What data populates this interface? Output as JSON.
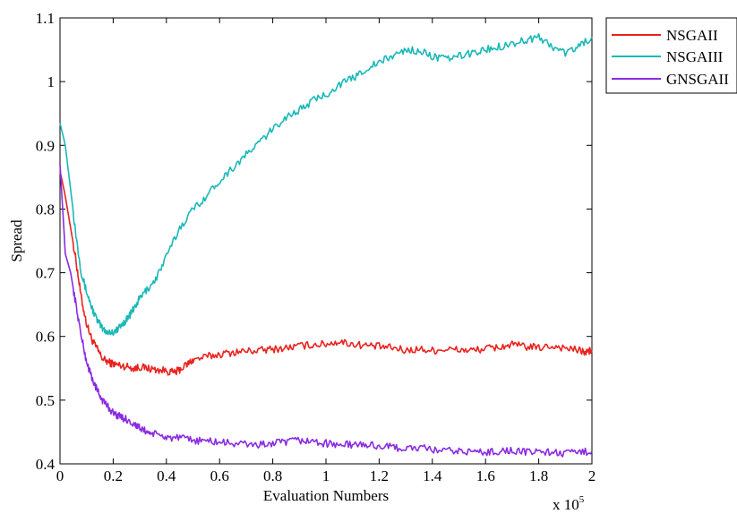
{
  "chart_data": {
    "type": "line",
    "xlabel": "Evaluation Numbers",
    "ylabel": "Spread",
    "x_multiplier_label": {
      "base": "x 10",
      "exponent": "5"
    },
    "xlim": [
      0,
      2
    ],
    "ylim": [
      0.4,
      1.1
    ],
    "x_ticks": [
      0,
      0.2,
      0.4,
      0.6,
      0.8,
      1,
      1.2,
      1.4,
      1.6,
      1.8,
      2
    ],
    "x_tick_labels": [
      "0",
      "0.2",
      "0.4",
      "0.6",
      "0.8",
      "1",
      "1.2",
      "1.4",
      "1.6",
      "1.8",
      "2"
    ],
    "y_ticks": [
      0.4,
      0.5,
      0.6,
      0.7,
      0.8,
      0.9,
      1.0,
      1.1
    ],
    "y_tick_labels": [
      "0.4",
      "0.5",
      "0.6",
      "0.7",
      "0.8",
      "0.9",
      "1",
      "1.1"
    ],
    "grid": false,
    "legend_position": "outside-top-right",
    "series": [
      {
        "name": "NSGAII",
        "color": "#e8231f",
        "x": [
          0,
          0.02,
          0.04,
          0.06,
          0.08,
          0.1,
          0.12,
          0.14,
          0.16,
          0.18,
          0.2,
          0.22,
          0.25,
          0.28,
          0.3,
          0.33,
          0.36,
          0.4,
          0.43,
          0.45,
          0.48,
          0.5,
          0.55,
          0.6,
          0.65,
          0.7,
          0.75,
          0.8,
          0.85,
          0.9,
          0.95,
          1.0,
          1.05,
          1.1,
          1.15,
          1.2,
          1.25,
          1.3,
          1.35,
          1.4,
          1.45,
          1.5,
          1.55,
          1.6,
          1.65,
          1.7,
          1.75,
          1.8,
          1.85,
          1.9,
          1.95,
          1.98,
          2.0
        ],
        "y": [
          0.86,
          0.82,
          0.77,
          0.72,
          0.66,
          0.62,
          0.595,
          0.58,
          0.565,
          0.56,
          0.557,
          0.555,
          0.553,
          0.55,
          0.552,
          0.55,
          0.548,
          0.546,
          0.543,
          0.548,
          0.557,
          0.563,
          0.568,
          0.572,
          0.575,
          0.577,
          0.578,
          0.58,
          0.582,
          0.585,
          0.587,
          0.588,
          0.592,
          0.588,
          0.586,
          0.584,
          0.582,
          0.578,
          0.58,
          0.578,
          0.58,
          0.579,
          0.578,
          0.581,
          0.583,
          0.587,
          0.584,
          0.582,
          0.585,
          0.582,
          0.578,
          0.575,
          0.579
        ]
      },
      {
        "name": "NSGAIII",
        "color": "#1ab8b8",
        "x": [
          0,
          0.02,
          0.04,
          0.06,
          0.08,
          0.1,
          0.12,
          0.14,
          0.16,
          0.18,
          0.2,
          0.22,
          0.24,
          0.26,
          0.28,
          0.3,
          0.33,
          0.36,
          0.4,
          0.45,
          0.5,
          0.55,
          0.6,
          0.65,
          0.7,
          0.75,
          0.8,
          0.85,
          0.9,
          0.95,
          1.0,
          1.05,
          1.1,
          1.15,
          1.2,
          1.25,
          1.3,
          1.35,
          1.4,
          1.45,
          1.5,
          1.55,
          1.6,
          1.65,
          1.7,
          1.75,
          1.8,
          1.85,
          1.9,
          1.95,
          2.0
        ],
        "y": [
          0.935,
          0.9,
          0.83,
          0.76,
          0.7,
          0.67,
          0.645,
          0.625,
          0.612,
          0.607,
          0.607,
          0.612,
          0.622,
          0.632,
          0.645,
          0.66,
          0.675,
          0.69,
          0.725,
          0.77,
          0.8,
          0.82,
          0.845,
          0.865,
          0.885,
          0.905,
          0.925,
          0.945,
          0.955,
          0.97,
          0.98,
          0.995,
          1.005,
          1.02,
          1.03,
          1.04,
          1.05,
          1.048,
          1.04,
          1.035,
          1.04,
          1.045,
          1.05,
          1.055,
          1.06,
          1.065,
          1.07,
          1.055,
          1.045,
          1.055,
          1.07
        ]
      },
      {
        "name": "GNSGAII",
        "color": "#8a2be2",
        "x": [
          0,
          0.02,
          0.04,
          0.06,
          0.08,
          0.1,
          0.12,
          0.14,
          0.16,
          0.18,
          0.2,
          0.22,
          0.25,
          0.28,
          0.3,
          0.33,
          0.36,
          0.4,
          0.45,
          0.5,
          0.55,
          0.6,
          0.65,
          0.7,
          0.75,
          0.8,
          0.85,
          0.9,
          0.95,
          1.0,
          1.05,
          1.1,
          1.15,
          1.2,
          1.25,
          1.3,
          1.35,
          1.4,
          1.45,
          1.5,
          1.55,
          1.6,
          1.65,
          1.7,
          1.75,
          1.8,
          1.85,
          1.9,
          1.95,
          2.0
        ],
        "y": [
          0.87,
          0.73,
          0.7,
          0.65,
          0.6,
          0.56,
          0.535,
          0.515,
          0.5,
          0.49,
          0.48,
          0.475,
          0.47,
          0.462,
          0.456,
          0.45,
          0.446,
          0.442,
          0.44,
          0.437,
          0.436,
          0.434,
          0.432,
          0.431,
          0.43,
          0.432,
          0.434,
          0.437,
          0.435,
          0.432,
          0.43,
          0.43,
          0.43,
          0.428,
          0.426,
          0.424,
          0.425,
          0.422,
          0.42,
          0.42,
          0.419,
          0.418,
          0.42,
          0.421,
          0.418,
          0.42,
          0.418,
          0.416,
          0.418,
          0.42
        ]
      }
    ]
  }
}
